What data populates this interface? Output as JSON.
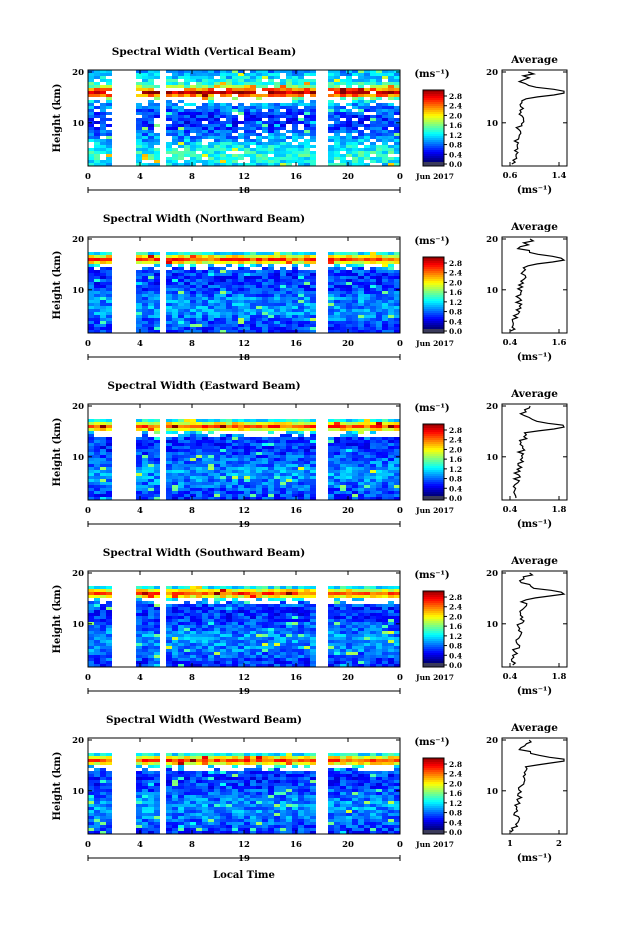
{
  "chart_data": [
    {
      "type": "heatmap",
      "title": "Spectral Width (Vertical Beam)",
      "ylabel": "Height (km)",
      "x_ticks": [
        "0",
        "4",
        "8",
        "12",
        "16",
        "20",
        "0"
      ],
      "y_ticks": [
        "10",
        "20"
      ],
      "date_label": "18",
      "month_label": "Jun 2017",
      "colorbar": {
        "unit": "(ms⁻¹)",
        "ticks": [
          "2.8",
          "2.4",
          "2.0",
          "1.6",
          "1.2",
          "0.8",
          "0.4",
          "0.0"
        ]
      },
      "average": {
        "title": "Average",
        "xlabel": "(ms⁻¹)",
        "x_ticks": [
          "0.6",
          "1.4"
        ],
        "y_ticks": [
          "10",
          "20"
        ]
      }
    },
    {
      "type": "heatmap",
      "title": "Spectral Width (Northward Beam)",
      "ylabel": "Height (km)",
      "x_ticks": [
        "0",
        "4",
        "8",
        "12",
        "16",
        "20",
        "0"
      ],
      "y_ticks": [
        "10",
        "20"
      ],
      "date_label": "18",
      "month_label": "Jun 2017",
      "colorbar": {
        "unit": "(ms⁻¹)",
        "ticks": [
          "2.8",
          "2.4",
          "2.0",
          "1.6",
          "1.2",
          "0.8",
          "0.4",
          "0.0"
        ]
      },
      "average": {
        "title": "Average",
        "xlabel": "(ms⁻¹)",
        "x_ticks": [
          "0.4",
          "1.6"
        ],
        "y_ticks": [
          "10",
          "20"
        ]
      }
    },
    {
      "type": "heatmap",
      "title": "Spectral Width (Eastward Beam)",
      "ylabel": "Height (km)",
      "x_ticks": [
        "0",
        "4",
        "8",
        "12",
        "16",
        "20",
        "0"
      ],
      "y_ticks": [
        "10",
        "20"
      ],
      "date_label": "19",
      "month_label": "Jun 2017",
      "colorbar": {
        "unit": "(ms⁻¹)",
        "ticks": [
          "2.8",
          "2.4",
          "2.0",
          "1.6",
          "1.2",
          "0.8",
          "0.4",
          "0.0"
        ]
      },
      "average": {
        "title": "Average",
        "xlabel": "(ms⁻¹)",
        "x_ticks": [
          "0.4",
          "1.8"
        ],
        "y_ticks": [
          "10",
          "20"
        ]
      }
    },
    {
      "type": "heatmap",
      "title": "Spectral Width (Southward Beam)",
      "ylabel": "Height (km)",
      "x_ticks": [
        "0",
        "4",
        "8",
        "12",
        "16",
        "20",
        "0"
      ],
      "y_ticks": [
        "10",
        "20"
      ],
      "date_label": "19",
      "month_label": "Jun 2017",
      "colorbar": {
        "unit": "(ms⁻¹)",
        "ticks": [
          "2.8",
          "2.4",
          "2.0",
          "1.6",
          "1.2",
          "0.8",
          "0.4",
          "0.0"
        ]
      },
      "average": {
        "title": "Average",
        "xlabel": "(ms⁻¹)",
        "x_ticks": [
          "0.4",
          "1.8"
        ],
        "y_ticks": [
          "10",
          "20"
        ]
      }
    },
    {
      "type": "heatmap",
      "title": "Spectral Width (Westward Beam)",
      "ylabel": "Height (km)",
      "x_ticks": [
        "0",
        "4",
        "8",
        "12",
        "16",
        "20",
        "0"
      ],
      "y_ticks": [
        "10",
        "20"
      ],
      "date_label": "19",
      "month_label": "Jun 2017",
      "xlabel": "Local Time",
      "colorbar": {
        "unit": "(ms⁻¹)",
        "ticks": [
          "2.8",
          "2.4",
          "2.0",
          "1.6",
          "1.2",
          "0.8",
          "0.4",
          "0.0"
        ]
      },
      "average": {
        "title": "Average",
        "xlabel": "(ms⁻¹)",
        "x_ticks": [
          "1",
          "2"
        ],
        "y_ticks": [
          "10",
          "20"
        ]
      }
    }
  ]
}
